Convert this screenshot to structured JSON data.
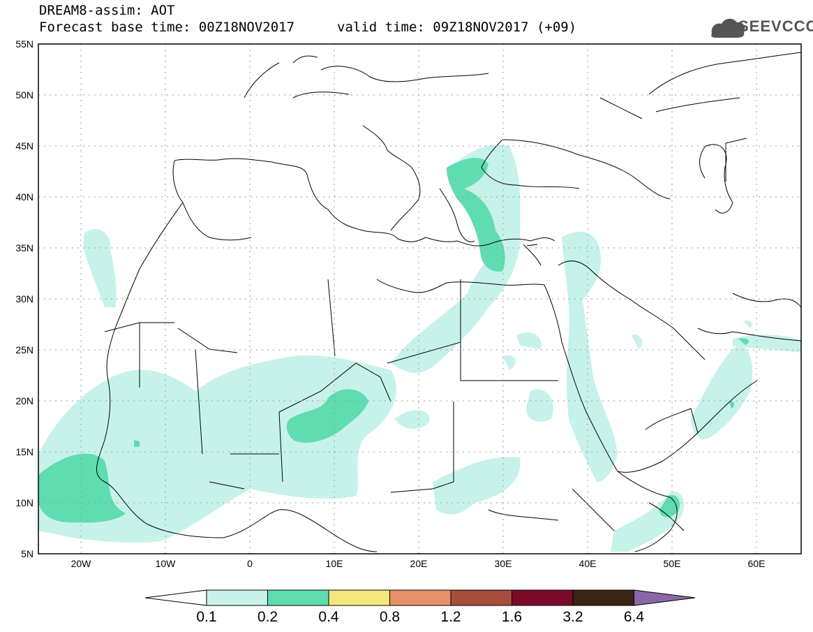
{
  "header": {
    "title": "DREAM8-assim: AOT",
    "base_time": "Forecast base time: 00Z18NOV2017",
    "valid_time": "valid time: 09Z18NOV2017 (+09)",
    "logo_text": "SEEVCCC"
  },
  "axes": {
    "lat_labels": [
      "55N",
      "50N",
      "45N",
      "40N",
      "35N",
      "30N",
      "25N",
      "20N",
      "15N",
      "10N",
      "5N"
    ],
    "lon_labels": [
      "20W",
      "10W",
      "0",
      "10E",
      "20E",
      "30E",
      "40E",
      "50E",
      "60E"
    ]
  },
  "colorbar": {
    "levels": [
      "0.1",
      "0.2",
      "0.4",
      "0.8",
      "1.2",
      "1.6",
      "3.2",
      "6.4"
    ],
    "colors": [
      "#ffffff",
      "#c6f2ea",
      "#5fdcb0",
      "#f4e87a",
      "#e8906a",
      "#a84c3c",
      "#7a0a2a",
      "#3a2414",
      "#8a68a8"
    ]
  },
  "colors": {
    "low": "#c6f2ea",
    "mid": "#5fdcb0",
    "border": "#000000",
    "grid": "#999999"
  }
}
